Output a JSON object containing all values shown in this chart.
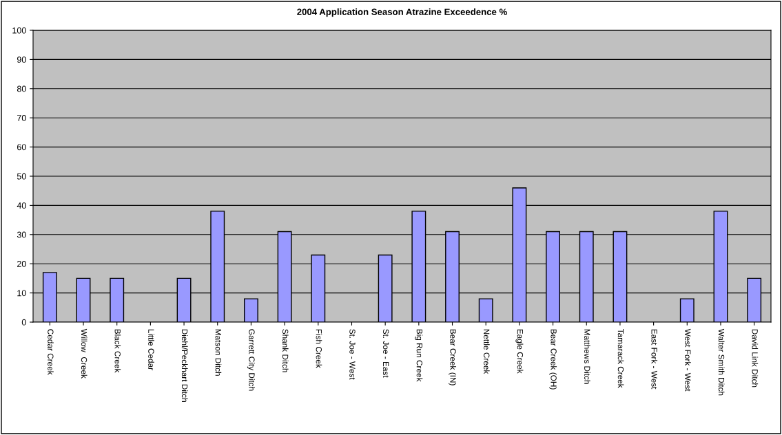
{
  "chart_data": {
    "type": "bar",
    "title": "2004 Application Season Atrazine Exceedence %",
    "categories": [
      "Cedar Creek",
      "Willow  Creek",
      "Black Creek",
      "Little Cedar",
      "Diehl/Peckhart Ditch",
      "Matson Ditch",
      "Garrett City Ditch",
      "Shank Ditch",
      "Fish Creek",
      "St. Joe - West",
      "St. Joe - East",
      "Big Run Creek",
      "Bear Creek (IN)",
      "Nettle Creek",
      "Eagle Creek",
      "Bear Creek (OH)",
      "Matthews Ditch",
      "Tamarack Creek",
      "East Fork - West",
      "West Fork - West",
      "Walter Smith Ditch",
      "David Link Ditch"
    ],
    "values": [
      17,
      15,
      15,
      0,
      15,
      38,
      8,
      31,
      23,
      0,
      23,
      38,
      31,
      8,
      46,
      31,
      31,
      31,
      0,
      8,
      38,
      15
    ],
    "color": "#9999ff",
    "ylim": [
      0,
      100
    ],
    "yticks": [
      0,
      10,
      20,
      30,
      40,
      50,
      60,
      70,
      80,
      90,
      100
    ],
    "grid": "y"
  }
}
